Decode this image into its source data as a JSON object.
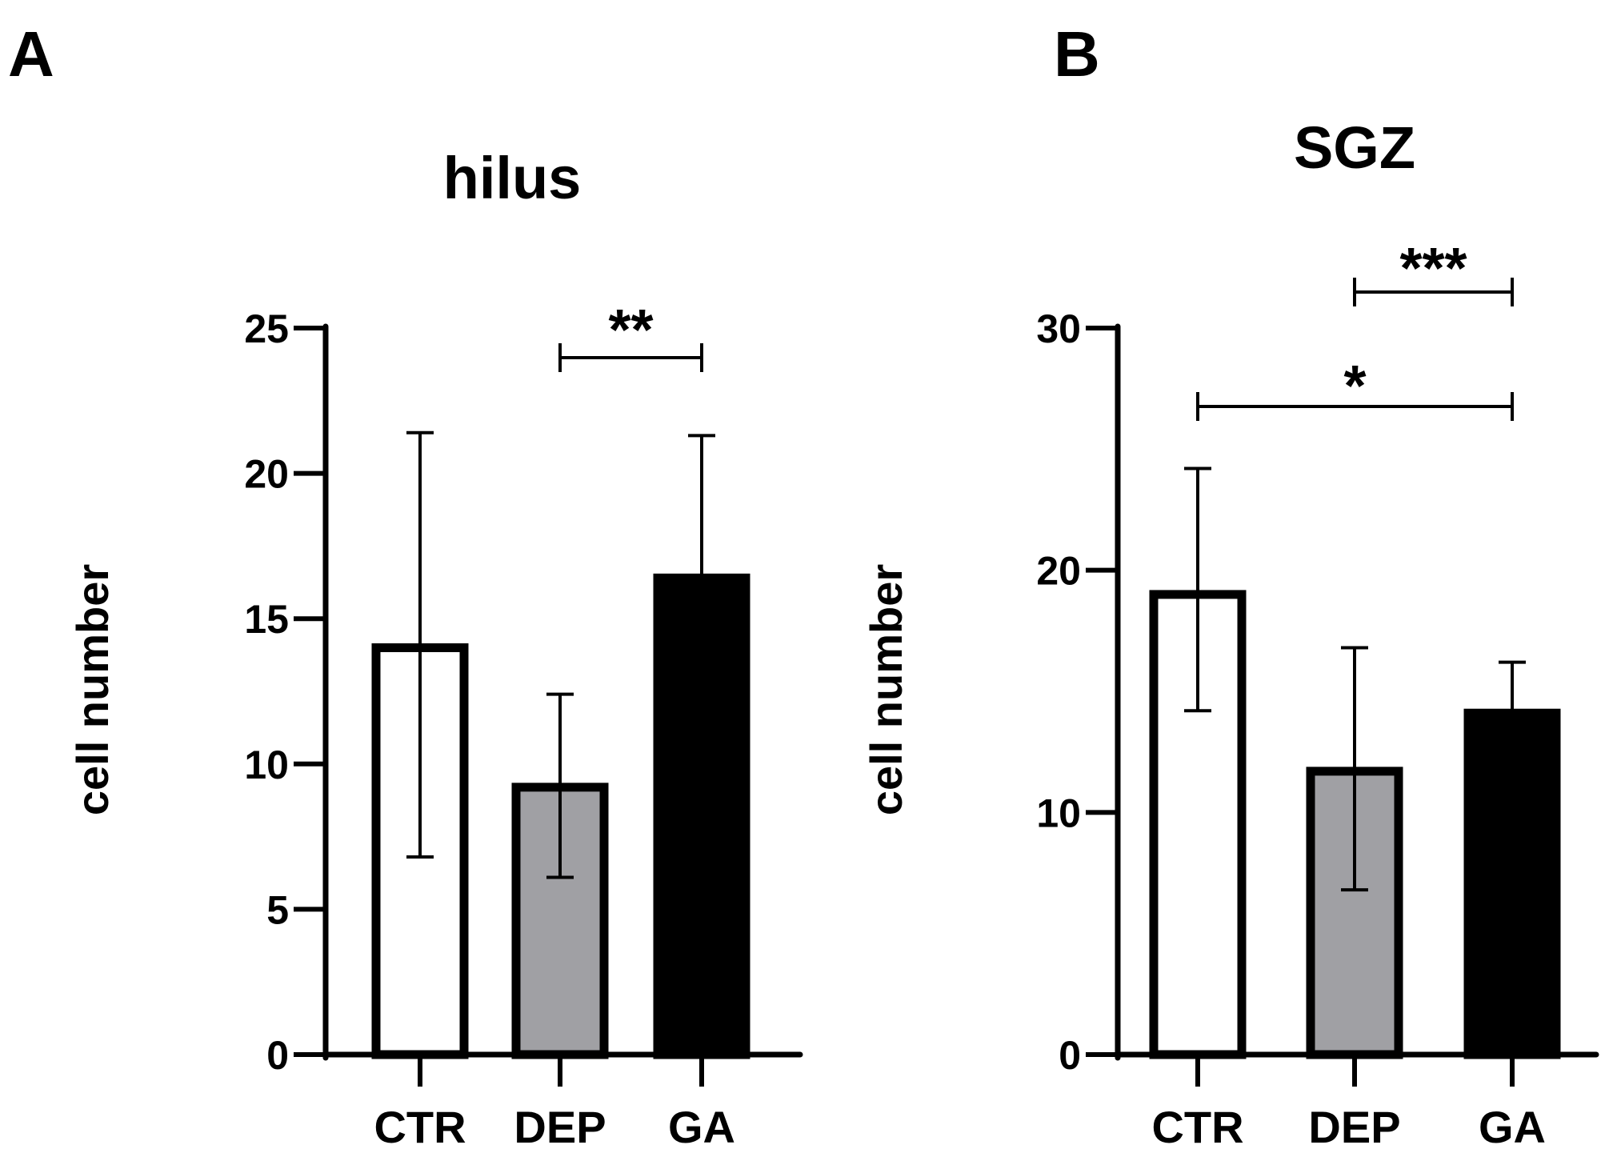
{
  "chart_data": [
    {
      "type": "bar",
      "panel": "A",
      "title": "hilus",
      "ylabel": "cell number",
      "xlabel": "",
      "ylim": [
        0,
        25
      ],
      "yticks": [
        0,
        5,
        10,
        15,
        20,
        25
      ],
      "categories": [
        "CTR",
        "DEP",
        "GA"
      ],
      "values": [
        14.0,
        9.2,
        16.4
      ],
      "error_upper": [
        21.4,
        12.4,
        21.3
      ],
      "error_lower": [
        6.8,
        6.1,
        16.4
      ],
      "bar_colors": [
        "#ffffff",
        "#a0a0a4",
        "#000000"
      ],
      "significance": [
        {
          "from": 1,
          "to": 2,
          "label": "**"
        }
      ]
    },
    {
      "type": "bar",
      "panel": "B",
      "title": "SGZ",
      "ylabel": "cell number",
      "xlabel": "",
      "ylim": [
        0,
        30
      ],
      "yticks": [
        0,
        10,
        20,
        30
      ],
      "categories": [
        "CTR",
        "DEP",
        "GA"
      ],
      "values": [
        19.0,
        11.7,
        14.1
      ],
      "error_upper": [
        24.2,
        16.8,
        16.2
      ],
      "error_lower": [
        14.2,
        6.8,
        14.1
      ],
      "bar_colors": [
        "#ffffff",
        "#a0a0a4",
        "#000000"
      ],
      "significance": [
        {
          "from": 1,
          "to": 2,
          "label": "***"
        },
        {
          "from": 0,
          "to": 2,
          "label": "*"
        }
      ]
    }
  ]
}
